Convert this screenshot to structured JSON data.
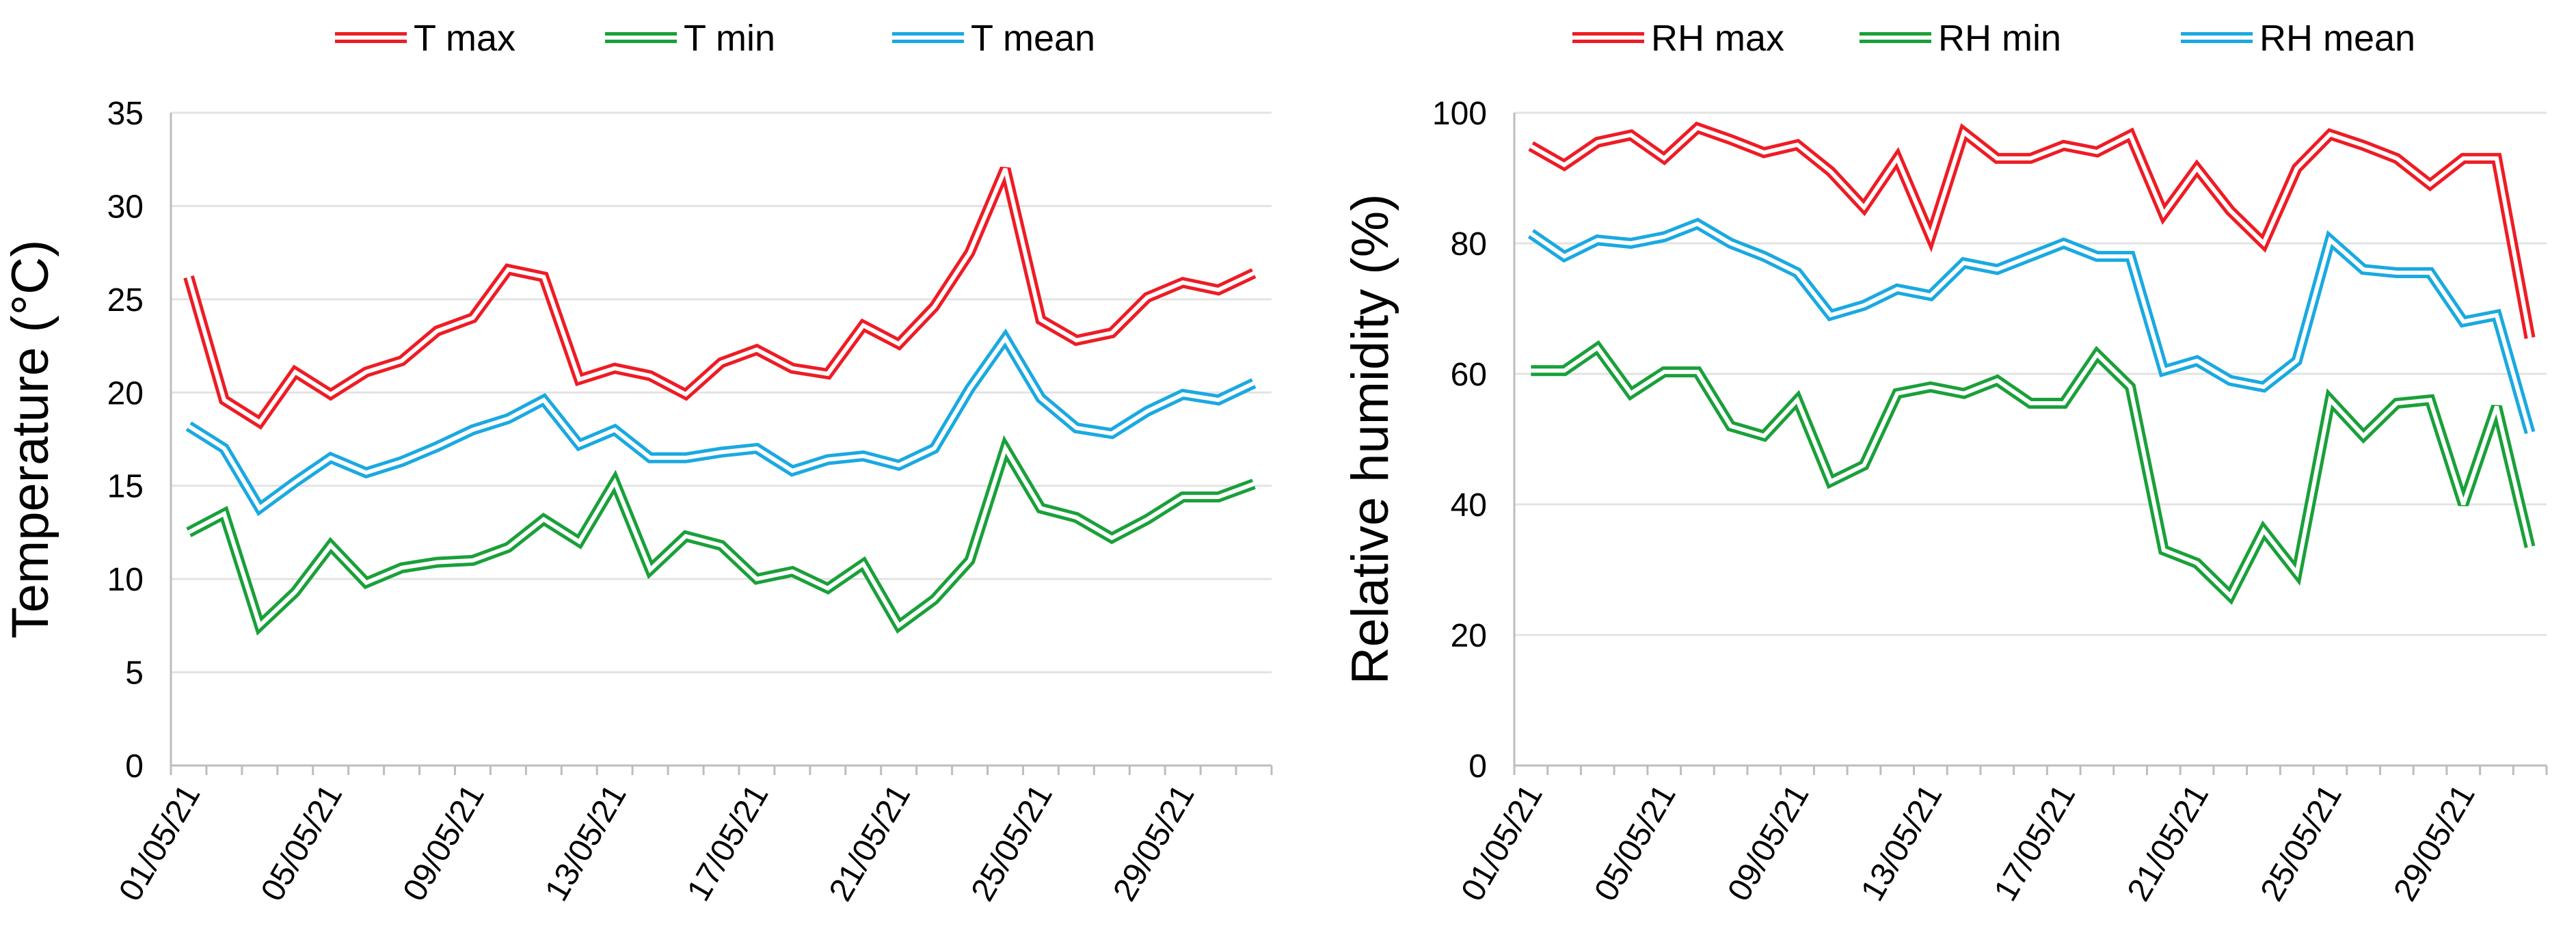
{
  "chart_data": [
    {
      "type": "line",
      "ylabel": "Temperature (°C)",
      "xlabel": "",
      "ylim": [
        0,
        35
      ],
      "yticks": [
        0,
        5,
        10,
        15,
        20,
        25,
        30,
        35
      ],
      "xtick_labels": [
        "01/05/21",
        "05/05/21",
        "09/05/21",
        "13/05/21",
        "17/05/21",
        "21/05/21",
        "25/05/21",
        "29/05/21"
      ],
      "x": [
        "01/05/21",
        "02/05/21",
        "03/05/21",
        "04/05/21",
        "05/05/21",
        "06/05/21",
        "07/05/21",
        "08/05/21",
        "09/05/21",
        "10/05/21",
        "11/05/21",
        "12/05/21",
        "13/05/21",
        "14/05/21",
        "15/05/21",
        "16/05/21",
        "17/05/21",
        "18/05/21",
        "19/05/21",
        "20/05/21",
        "21/05/21",
        "22/05/21",
        "23/05/21",
        "24/05/21",
        "25/05/21",
        "26/05/21",
        "27/05/21",
        "28/05/21",
        "29/05/21",
        "30/05/21",
        "31/05/21"
      ],
      "legend_position": "top",
      "grid": true,
      "series": [
        {
          "name": "T max",
          "color": "#ee1c25",
          "values": [
            26.2,
            19.6,
            18.4,
            21.1,
            19.9,
            21.1,
            21.7,
            23.3,
            24.0,
            26.6,
            26.2,
            20.7,
            21.3,
            20.9,
            19.9,
            21.6,
            22.3,
            21.3,
            21.0,
            23.6,
            22.6,
            24.6,
            27.5,
            32.0,
            23.9,
            22.8,
            23.2,
            25.1,
            25.9,
            25.5,
            26.4
          ]
        },
        {
          "name": "T min",
          "color": "#1aa03a",
          "values": [
            12.5,
            13.5,
            7.5,
            9.3,
            11.8,
            9.8,
            10.6,
            10.9,
            11.0,
            11.7,
            13.2,
            12.0,
            15.2,
            10.5,
            12.3,
            11.8,
            10.0,
            10.4,
            9.5,
            10.8,
            7.5,
            8.9,
            11.0,
            17.0,
            13.8,
            13.3,
            12.2,
            13.2,
            14.4,
            14.4,
            15.1
          ]
        },
        {
          "name": "T mean",
          "color": "#1aa9e1",
          "values": [
            18.2,
            17.0,
            13.8,
            15.2,
            16.5,
            15.7,
            16.3,
            17.1,
            18.0,
            18.6,
            19.6,
            17.2,
            18.0,
            16.5,
            16.5,
            16.8,
            17.0,
            15.8,
            16.4,
            16.6,
            16.1,
            17.0,
            20.2,
            22.9,
            19.7,
            18.1,
            17.8,
            19.0,
            19.9,
            19.6,
            20.5
          ]
        }
      ]
    },
    {
      "type": "line",
      "ylabel": "Relative humidity (%)",
      "xlabel": "",
      "ylim": [
        0,
        100
      ],
      "yticks": [
        0,
        20,
        40,
        60,
        80,
        100
      ],
      "xtick_labels": [
        "01/05/21",
        "05/05/21",
        "09/05/21",
        "13/05/21",
        "17/05/21",
        "21/05/21",
        "25/05/21",
        "29/05/21"
      ],
      "x": [
        "01/05/21",
        "02/05/21",
        "03/05/21",
        "04/05/21",
        "05/05/21",
        "06/05/21",
        "07/05/21",
        "08/05/21",
        "09/05/21",
        "10/05/21",
        "11/05/21",
        "12/05/21",
        "13/05/21",
        "14/05/21",
        "15/05/21",
        "16/05/21",
        "17/05/21",
        "18/05/21",
        "19/05/21",
        "20/05/21",
        "21/05/21",
        "22/05/21",
        "23/05/21",
        "24/05/21",
        "25/05/21",
        "26/05/21",
        "27/05/21",
        "28/05/21",
        "29/05/21",
        "30/05/21",
        "31/05/21"
      ],
      "legend_position": "top",
      "grid": true,
      "series": [
        {
          "name": "RH max",
          "color": "#ee1c25",
          "values": [
            94.9,
            92.0,
            95.5,
            96.6,
            93.0,
            97.7,
            95.9,
            93.9,
            95.1,
            91.0,
            85.5,
            93.0,
            81.0,
            97.0,
            93.0,
            93.0,
            95.0,
            94.0,
            96.6,
            84.5,
            91.5,
            85.0,
            80.0,
            91.5,
            96.7,
            95.0,
            93.0,
            89.0,
            93.0,
            93.0,
            65.5
          ]
        },
        {
          "name": "RH min",
          "color": "#1aa03a",
          "values": [
            60.5,
            60.5,
            64.0,
            57.0,
            60.3,
            60.3,
            52.0,
            50.5,
            56.0,
            43.5,
            46.0,
            57.0,
            58.0,
            57.0,
            59.0,
            55.5,
            55.5,
            63.0,
            58.0,
            33.0,
            31.0,
            26.0,
            36.0,
            29.5,
            56.0,
            50.5,
            55.5,
            56.0,
            40.0,
            55.0,
            33.5
          ]
        },
        {
          "name": "RH mean",
          "color": "#1aa9e1",
          "values": [
            81.5,
            78.0,
            80.5,
            80.0,
            81.0,
            83.0,
            80.0,
            78.0,
            75.5,
            69.0,
            70.5,
            73.0,
            72.0,
            77.0,
            76.0,
            78.0,
            80.0,
            78.0,
            78.0,
            60.5,
            62.0,
            59.0,
            58.0,
            62.0,
            80.5,
            76.0,
            75.5,
            75.5,
            68.0,
            69.0,
            51.0
          ]
        }
      ]
    }
  ]
}
